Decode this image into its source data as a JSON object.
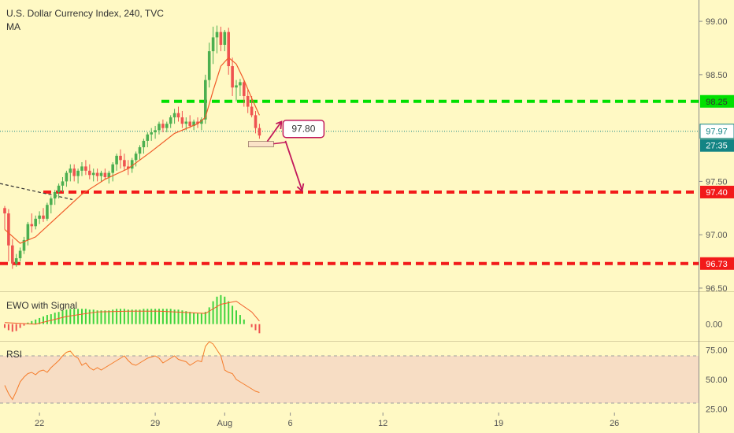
{
  "header": {
    "title": "U.S. Dollar Currency Index, 240, TVC",
    "indicator": "MA"
  },
  "panels": {
    "ewo_title": "EWO with Signal",
    "rsi_title": "RSI"
  },
  "colors": {
    "background": "#FFF9C4",
    "candle_up": "#4CAF50",
    "candle_down": "#EF5350",
    "ma": "#F05A28",
    "green_level": "#00E000",
    "red_level": "#F21A1A",
    "price_line": "#138484",
    "annotation": "#C2185B",
    "rsi_band": "#F7DDC4",
    "rsi_line": "#F57C2A"
  },
  "chart_data": [
    {
      "type": "candlestick",
      "title": "U.S. Dollar Currency Index, 240, TVC",
      "ylim": [
        96.47,
        99.2
      ],
      "y_ticks": [
        96.5,
        97.0,
        97.5,
        98.0,
        98.5,
        99.0
      ],
      "y_tick_labels": [
        "96.50",
        "97.00",
        "97.50",
        "",
        "98.50",
        "99.00"
      ],
      "x_ticks": [
        {
          "label": "22",
          "bar": 9
        },
        {
          "label": "29",
          "bar": 39
        },
        {
          "label": "Aug",
          "bar": 57
        },
        {
          "label": "6",
          "bar": 74
        },
        {
          "label": "12",
          "bar": 98
        },
        {
          "label": "19",
          "bar": 128
        },
        {
          "label": "26",
          "bar": 158
        }
      ],
      "total_bars": 180,
      "ohlc": [
        [
          97.25,
          97.27,
          97.05,
          97.2
        ],
        [
          97.2,
          97.24,
          96.75,
          96.9
        ],
        [
          96.9,
          96.96,
          96.68,
          96.73
        ],
        [
          96.73,
          96.82,
          96.7,
          96.78
        ],
        [
          96.78,
          96.88,
          96.75,
          96.85
        ],
        [
          96.85,
          96.98,
          96.82,
          96.95
        ],
        [
          96.95,
          97.12,
          96.9,
          97.1
        ],
        [
          97.1,
          97.2,
          97.02,
          97.08
        ],
        [
          97.08,
          97.18,
          97.05,
          97.15
        ],
        [
          97.15,
          97.22,
          97.1,
          97.18
        ],
        [
          97.18,
          97.25,
          97.12,
          97.15
        ],
        [
          97.15,
          97.3,
          97.13,
          97.28
        ],
        [
          97.28,
          97.36,
          97.2,
          97.34
        ],
        [
          97.34,
          97.42,
          97.28,
          97.4
        ],
        [
          97.4,
          97.48,
          97.34,
          97.46
        ],
        [
          97.46,
          97.54,
          97.4,
          97.5
        ],
        [
          97.5,
          97.6,
          97.45,
          97.58
        ],
        [
          97.58,
          97.66,
          97.5,
          97.62
        ],
        [
          97.62,
          97.66,
          97.5,
          97.55
        ],
        [
          97.55,
          97.62,
          97.48,
          97.6
        ],
        [
          97.6,
          97.68,
          97.55,
          97.64
        ],
        [
          97.64,
          97.7,
          97.56,
          97.6
        ],
        [
          97.6,
          97.66,
          97.52,
          97.56
        ],
        [
          97.56,
          97.62,
          97.5,
          97.58
        ],
        [
          97.58,
          97.62,
          97.5,
          97.55
        ],
        [
          97.55,
          97.6,
          97.5,
          97.58
        ],
        [
          97.58,
          97.62,
          97.52,
          97.54
        ],
        [
          97.54,
          97.6,
          97.48,
          97.58
        ],
        [
          97.58,
          97.68,
          97.5,
          97.66
        ],
        [
          97.66,
          97.76,
          97.6,
          97.74
        ],
        [
          97.74,
          97.8,
          97.62,
          97.7
        ],
        [
          97.7,
          97.76,
          97.6,
          97.64
        ],
        [
          97.64,
          97.7,
          97.56,
          97.62
        ],
        [
          97.62,
          97.72,
          97.58,
          97.7
        ],
        [
          97.7,
          97.78,
          97.64,
          97.76
        ],
        [
          97.76,
          97.84,
          97.7,
          97.82
        ],
        [
          97.82,
          97.9,
          97.76,
          97.88
        ],
        [
          97.88,
          97.96,
          97.82,
          97.94
        ],
        [
          97.94,
          98.0,
          97.88,
          97.96
        ],
        [
          97.96,
          98.02,
          97.9,
          97.98
        ],
        [
          97.98,
          98.06,
          97.94,
          98.04
        ],
        [
          98.04,
          98.08,
          97.96,
          98.0
        ],
        [
          98.0,
          98.06,
          97.96,
          98.04
        ],
        [
          98.04,
          98.12,
          98.0,
          98.1
        ],
        [
          98.1,
          98.18,
          98.04,
          98.14
        ],
        [
          98.14,
          98.2,
          98.06,
          98.1
        ],
        [
          98.1,
          98.16,
          98.0,
          98.04
        ],
        [
          98.04,
          98.1,
          97.98,
          98.06
        ],
        [
          98.06,
          98.12,
          98.0,
          98.02
        ],
        [
          98.02,
          98.08,
          97.98,
          98.06
        ],
        [
          98.06,
          98.1,
          98.0,
          98.04
        ],
        [
          98.04,
          98.1,
          97.98,
          98.08
        ],
        [
          98.08,
          98.5,
          98.04,
          98.45
        ],
        [
          98.45,
          98.8,
          98.38,
          98.72
        ],
        [
          98.72,
          98.95,
          98.6,
          98.85
        ],
        [
          98.85,
          98.96,
          98.7,
          98.9
        ],
        [
          98.9,
          98.95,
          98.72,
          98.78
        ],
        [
          98.78,
          98.92,
          98.72,
          98.9
        ],
        [
          98.9,
          98.94,
          98.5,
          98.58
        ],
        [
          98.58,
          98.66,
          98.3,
          98.38
        ],
        [
          98.38,
          98.45,
          98.25,
          98.4
        ],
        [
          98.4,
          98.46,
          98.3,
          98.43
        ],
        [
          98.43,
          98.45,
          98.2,
          98.3
        ],
        [
          98.3,
          98.36,
          98.14,
          98.2
        ],
        [
          98.2,
          98.3,
          98.1,
          98.12
        ],
        [
          98.12,
          98.16,
          97.95,
          98.0
        ],
        [
          98.0,
          98.04,
          97.9,
          97.93
        ]
      ],
      "ma": [
        [
          0,
          97.05
        ],
        [
          4,
          96.92
        ],
        [
          8,
          96.98
        ],
        [
          14,
          97.18
        ],
        [
          20,
          97.38
        ],
        [
          26,
          97.52
        ],
        [
          32,
          97.62
        ],
        [
          38,
          97.78
        ],
        [
          44,
          97.95
        ],
        [
          50,
          98.04
        ],
        [
          52,
          98.1
        ],
        [
          54,
          98.35
        ],
        [
          56,
          98.58
        ],
        [
          58,
          98.66
        ],
        [
          60,
          98.6
        ],
        [
          62,
          98.45
        ],
        [
          64,
          98.28
        ],
        [
          66,
          98.12
        ]
      ],
      "levels": [
        {
          "value": 98.25,
          "label": "98.25",
          "color": "#00E000"
        },
        {
          "value": 97.4,
          "label": "97.40",
          "color": "#F21A1A"
        },
        {
          "value": 96.73,
          "label": "96.73",
          "color": "#F21A1A"
        }
      ],
      "current_price": {
        "value": 97.97,
        "label": "97.97",
        "countdown": "27:35"
      },
      "annotation": {
        "label": "97.80",
        "value": 97.8
      }
    },
    {
      "type": "bar",
      "title": "EWO with Signal",
      "ylim": [
        -0.22,
        0.42
      ],
      "y_ticks": [
        0.0
      ],
      "y_tick_labels": [
        "0.00"
      ],
      "values": [
        -0.05,
        -0.08,
        -0.1,
        -0.09,
        -0.05,
        -0.02,
        0.02,
        0.04,
        0.06,
        0.08,
        0.1,
        0.12,
        0.13,
        0.15,
        0.16,
        0.18,
        0.19,
        0.2,
        0.2,
        0.2,
        0.2,
        0.2,
        0.19,
        0.19,
        0.18,
        0.18,
        0.18,
        0.18,
        0.19,
        0.2,
        0.2,
        0.2,
        0.19,
        0.19,
        0.19,
        0.19,
        0.2,
        0.2,
        0.2,
        0.2,
        0.2,
        0.2,
        0.2,
        0.2,
        0.19,
        0.19,
        0.18,
        0.17,
        0.16,
        0.15,
        0.14,
        0.14,
        0.16,
        0.22,
        0.3,
        0.36,
        0.38,
        0.36,
        0.3,
        0.24,
        0.18,
        0.12,
        0.06,
        0.0,
        -0.04,
        -0.08,
        -0.12
      ],
      "signal": [
        [
          0,
          0.02
        ],
        [
          8,
          0.0
        ],
        [
          16,
          0.1
        ],
        [
          24,
          0.16
        ],
        [
          32,
          0.17
        ],
        [
          40,
          0.17
        ],
        [
          48,
          0.15
        ],
        [
          52,
          0.14
        ],
        [
          56,
          0.26
        ],
        [
          60,
          0.3
        ],
        [
          64,
          0.16
        ],
        [
          66,
          0.04
        ]
      ]
    },
    {
      "type": "line",
      "title": "RSI",
      "ylim": [
        22,
        82
      ],
      "y_ticks": [
        25,
        50,
        75
      ],
      "y_tick_labels": [
        "25.00",
        "50.00",
        "75.00"
      ],
      "band": [
        30,
        70
      ],
      "values": [
        45,
        38,
        33,
        40,
        48,
        52,
        55,
        56,
        54,
        57,
        58,
        56,
        60,
        63,
        66,
        70,
        73,
        74,
        70,
        68,
        62,
        64,
        60,
        58,
        60,
        58,
        60,
        62,
        64,
        66,
        68,
        70,
        66,
        63,
        62,
        64,
        66,
        68,
        69,
        70,
        68,
        64,
        66,
        68,
        70,
        67,
        66,
        65,
        62,
        64,
        66,
        65,
        78,
        82,
        80,
        75,
        70,
        58,
        56,
        55,
        50,
        48,
        46,
        44,
        42,
        40,
        39
      ]
    }
  ]
}
